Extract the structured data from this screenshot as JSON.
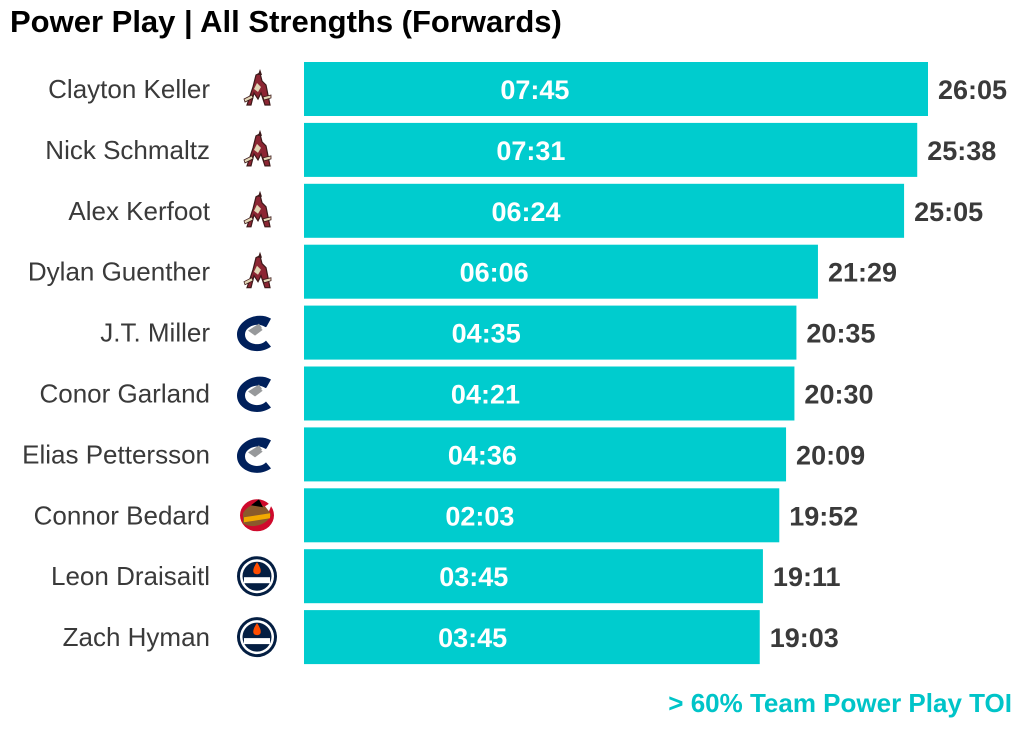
{
  "title": "Power Play | All Strengths (Forwards)",
  "footnote": "> 60% Team Power Play TOI",
  "colors": {
    "bar": "#00ccce",
    "footnote": "#00c4c8",
    "coyotes": "#8c2633",
    "coyotes_accent": "#e2d6b5",
    "canucks": "#00205b",
    "canucks_accent": "#97999b",
    "blackhawks": "#cf0a2c",
    "blackhawks_accent": "#f2a900",
    "oilers": "#041e42",
    "oilers_accent": "#ff4c00"
  },
  "chart_data": {
    "type": "bar",
    "orientation": "horizontal",
    "title": "Power Play | All Strengths (Forwards)",
    "categories": [
      "Clayton Keller",
      "Nick Schmaltz",
      "Alex Kerfoot",
      "Dylan Guenther",
      "J.T. Miller",
      "Conor Garland",
      "Elias Pettersson",
      "Connor Bedard",
      "Leon Draisaitl",
      "Zach Hyman"
    ],
    "teams": [
      "coyotes-logo-icon",
      "coyotes-logo-icon",
      "coyotes-logo-icon",
      "coyotes-logo-icon",
      "canucks-logo-icon",
      "canucks-logo-icon",
      "canucks-logo-icon",
      "blackhawks-logo-icon",
      "oilers-logo-icon",
      "oilers-logo-icon"
    ],
    "toi_labels": [
      "26:05",
      "25:38",
      "25:05",
      "21:29",
      "20:35",
      "20:30",
      "20:09",
      "19:52",
      "19:11",
      "19:03"
    ],
    "pp_labels": [
      "07:45",
      "07:31",
      "06:24",
      "06:06",
      "04:35",
      "04:21",
      "04:36",
      "02:03",
      "03:45",
      "03:45"
    ],
    "grid": false,
    "legend": "none"
  }
}
